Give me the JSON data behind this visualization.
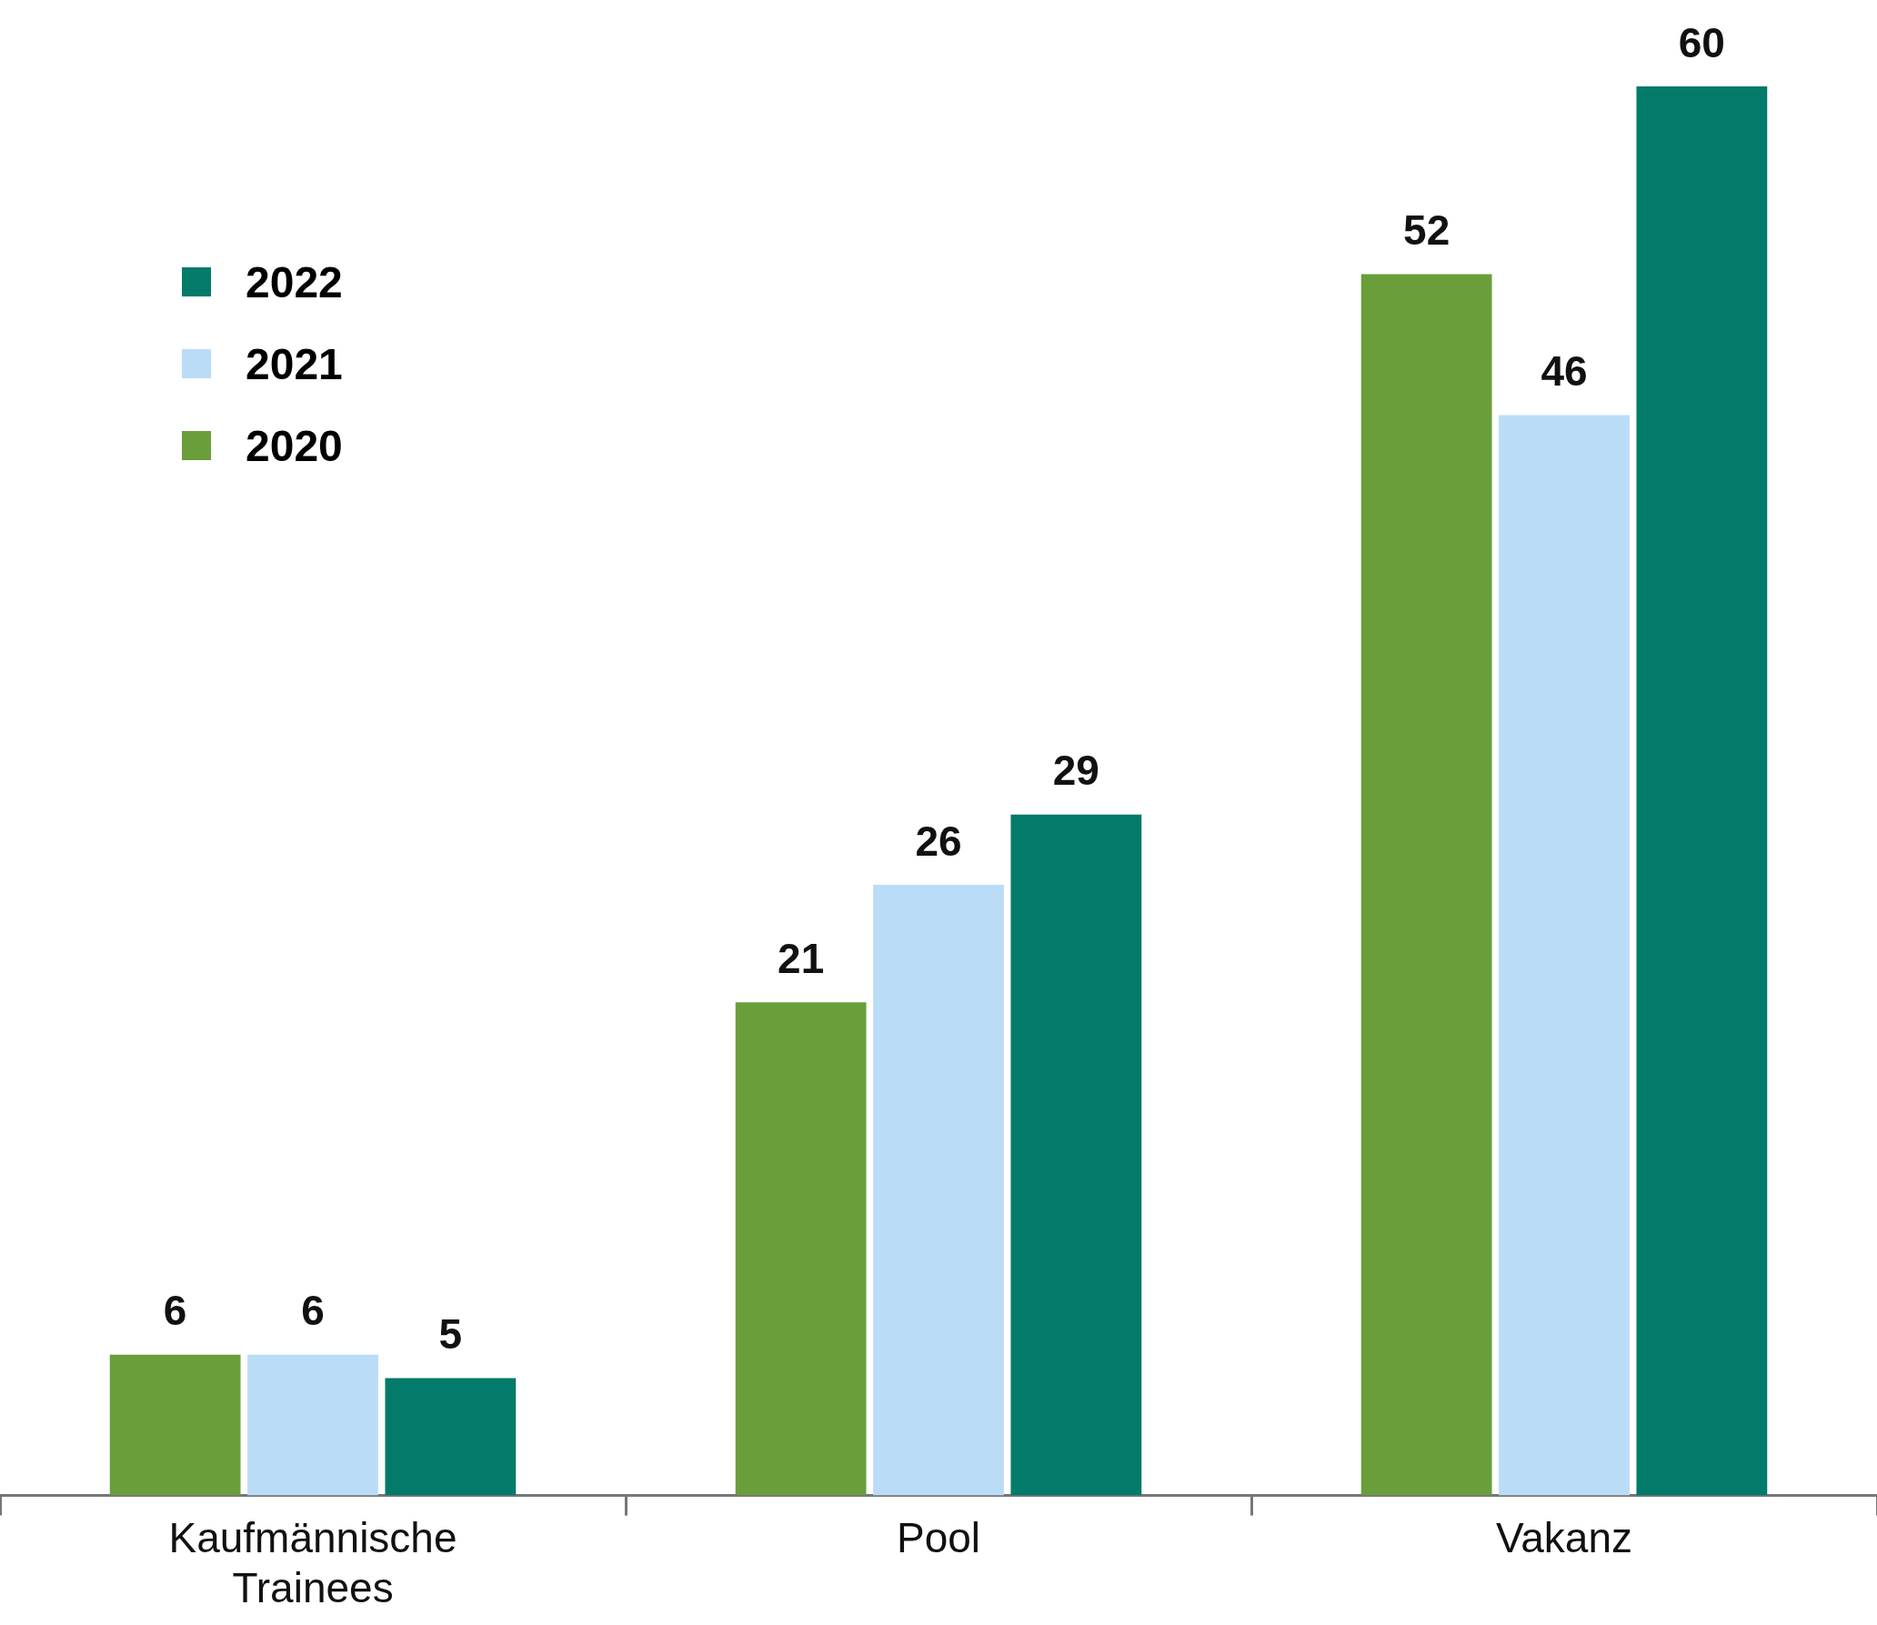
{
  "chart_data": {
    "type": "bar",
    "categories": [
      "Kaufmännische Trainees",
      "Pool",
      "Vakanz"
    ],
    "series": [
      {
        "name": "2020",
        "color": "#6a9e3a",
        "values": [
          6,
          21,
          52
        ]
      },
      {
        "name": "2021",
        "color": "#bbdcf7",
        "values": [
          6,
          26,
          46
        ]
      },
      {
        "name": "2022",
        "color": "#037a6a",
        "values": [
          5,
          29,
          60
        ]
      }
    ],
    "data_labels": true,
    "legend": "top left",
    "grid": false,
    "tick_labels": "x"
  }
}
